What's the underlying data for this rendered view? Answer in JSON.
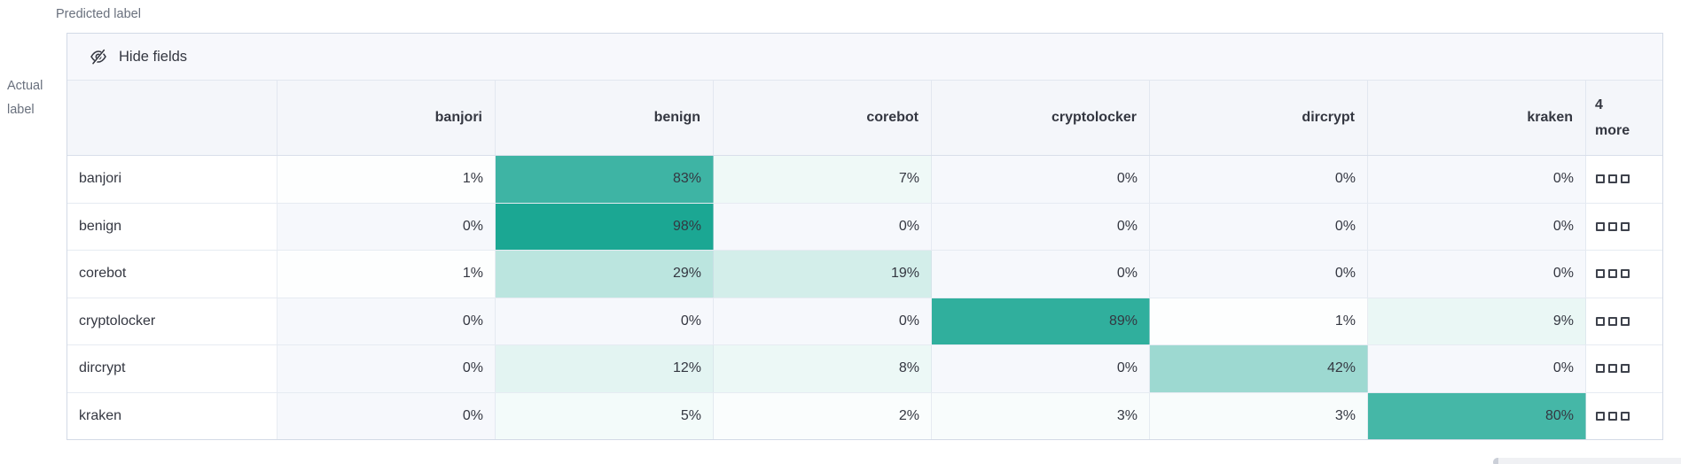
{
  "colors": {
    "heat_teal": "#16A591",
    "zero_cell_bg": "#F6F8FC",
    "cell_text": "#343741",
    "muted_text": "#69707D"
  },
  "axes": {
    "predicted": "Predicted label",
    "actual_line1": "Actual",
    "actual_line2": "label"
  },
  "toolbar": {
    "hide_fields_label": "Hide fields"
  },
  "more_column": {
    "count": "4",
    "label": "more"
  },
  "chart_data": {
    "type": "heatmap",
    "title": "Confusion matrix data grid",
    "x_axis_label": "Predicted label",
    "y_axis_label": "Actual label",
    "columns": [
      "banjori",
      "benign",
      "corebot",
      "cryptolocker",
      "dircrypt",
      "kraken"
    ],
    "hidden_columns_note": "4 more",
    "rows": [
      "banjori",
      "benign",
      "corebot",
      "cryptolocker",
      "dircrypt",
      "kraken"
    ],
    "values_percent": [
      [
        1,
        83,
        7,
        0,
        0,
        0
      ],
      [
        0,
        98,
        0,
        0,
        0,
        0
      ],
      [
        1,
        29,
        19,
        0,
        0,
        0
      ],
      [
        0,
        0,
        0,
        89,
        1,
        9
      ],
      [
        0,
        12,
        8,
        0,
        42,
        0
      ],
      [
        0,
        5,
        2,
        3,
        3,
        80
      ]
    ],
    "value_suffix": "%",
    "color_scale": {
      "min_color": "#FFFFFF",
      "max_color": "#16A591",
      "domain": [
        0,
        100
      ]
    },
    "legend": "none",
    "grid": "on"
  }
}
